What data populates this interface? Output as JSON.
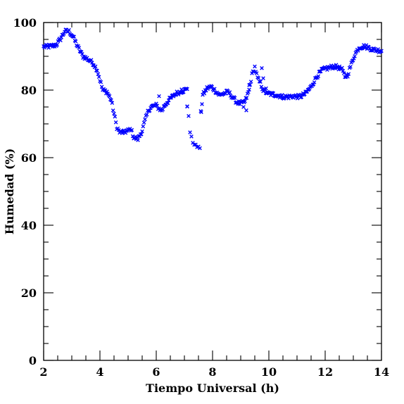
{
  "chart_data": {
    "type": "scatter",
    "title": "",
    "xlabel": "Tiempo Universal (h)",
    "ylabel": "Humedad (%)",
    "xlim": [
      2,
      14
    ],
    "ylim": [
      0,
      100
    ],
    "xticks": [
      2,
      4,
      6,
      8,
      10,
      12,
      14
    ],
    "yticks": [
      0,
      20,
      40,
      60,
      80,
      100
    ],
    "grid": false,
    "legend": "none",
    "marker": "x",
    "color": "#0000ff",
    "profile": [
      [
        2.0,
        92.8
      ],
      [
        2.3,
        93.0
      ],
      [
        2.45,
        93.4
      ],
      [
        2.6,
        95.2
      ],
      [
        2.75,
        97.4
      ],
      [
        2.9,
        97.4
      ],
      [
        3.05,
        95.8
      ],
      [
        3.2,
        93.0
      ],
      [
        3.4,
        90.0
      ],
      [
        3.6,
        89.0
      ],
      [
        3.75,
        88.0
      ],
      [
        3.9,
        86.0
      ],
      [
        4.0,
        83.0
      ],
      [
        4.1,
        80.0
      ],
      [
        4.25,
        79.5
      ],
      [
        4.4,
        77.0
      ],
      [
        4.5,
        73.0
      ],
      [
        4.6,
        69.0
      ],
      [
        4.7,
        67.5
      ],
      [
        4.85,
        67.5
      ],
      [
        5.0,
        68.0
      ],
      [
        5.1,
        68.5
      ],
      [
        5.2,
        66.0
      ],
      [
        5.35,
        65.5
      ],
      [
        5.5,
        68.0
      ],
      [
        5.6,
        71.0
      ],
      [
        5.7,
        73.5
      ],
      [
        5.8,
        75.0
      ],
      [
        6.0,
        75.5
      ],
      [
        6.1,
        74.5
      ],
      [
        6.2,
        74.0
      ],
      [
        6.3,
        75.5
      ],
      [
        6.5,
        77.5
      ],
      [
        6.7,
        79.0
      ],
      [
        6.85,
        79.5
      ],
      [
        7.0,
        80.0
      ],
      [
        7.1,
        80.3
      ]
    ],
    "profile2": [
      [
        7.1,
        75.2
      ],
      [
        7.15,
        72.5
      ],
      [
        7.2,
        67.5
      ],
      [
        7.3,
        64.5
      ],
      [
        7.45,
        63.2
      ],
      [
        7.55,
        62.8
      ]
    ],
    "profile3": [
      [
        7.6,
        73.8
      ],
      [
        7.65,
        78.5
      ],
      [
        7.8,
        80.5
      ],
      [
        7.95,
        81.0
      ],
      [
        8.1,
        79.8
      ],
      [
        8.25,
        78.5
      ],
      [
        8.4,
        79.0
      ],
      [
        8.55,
        79.5
      ],
      [
        8.7,
        78.0
      ],
      [
        8.85,
        76.5
      ],
      [
        9.0,
        76.0
      ],
      [
        9.15,
        76.5
      ],
      [
        9.3,
        80.0
      ],
      [
        9.4,
        84.5
      ],
      [
        9.5,
        86.8
      ],
      [
        9.6,
        83.5
      ],
      [
        9.7,
        82.0
      ],
      [
        9.8,
        80.0
      ],
      [
        9.95,
        79.0
      ],
      [
        10.1,
        78.8
      ],
      [
        10.3,
        78.5
      ],
      [
        10.5,
        78.0
      ],
      [
        10.7,
        78.0
      ],
      [
        10.9,
        78.2
      ],
      [
        11.1,
        78.0
      ],
      [
        11.3,
        79.0
      ],
      [
        11.5,
        81.0
      ],
      [
        11.7,
        84.0
      ],
      [
        11.9,
        86.0
      ],
      [
        12.1,
        86.5
      ],
      [
        12.3,
        87.0
      ],
      [
        12.45,
        86.8
      ],
      [
        12.6,
        86.0
      ],
      [
        12.7,
        84.0
      ],
      [
        12.8,
        84.5
      ],
      [
        12.9,
        87.0
      ],
      [
        13.05,
        90.5
      ],
      [
        13.2,
        92.6
      ],
      [
        13.4,
        93.0
      ],
      [
        13.55,
        92.5
      ],
      [
        13.7,
        92.0
      ],
      [
        13.85,
        91.8
      ],
      [
        14.0,
        91.6
      ]
    ],
    "spikes": [
      [
        6.1,
        78.2
      ],
      [
        6.9,
        80.2
      ],
      [
        7.1,
        75.2
      ],
      [
        7.58,
        73.8
      ],
      [
        9.1,
        75.0
      ],
      [
        9.3,
        81.5
      ],
      [
        9.75,
        86.5
      ],
      [
        9.8,
        83.5
      ],
      [
        9.9,
        80.5
      ],
      [
        9.2,
        74.0
      ]
    ]
  }
}
